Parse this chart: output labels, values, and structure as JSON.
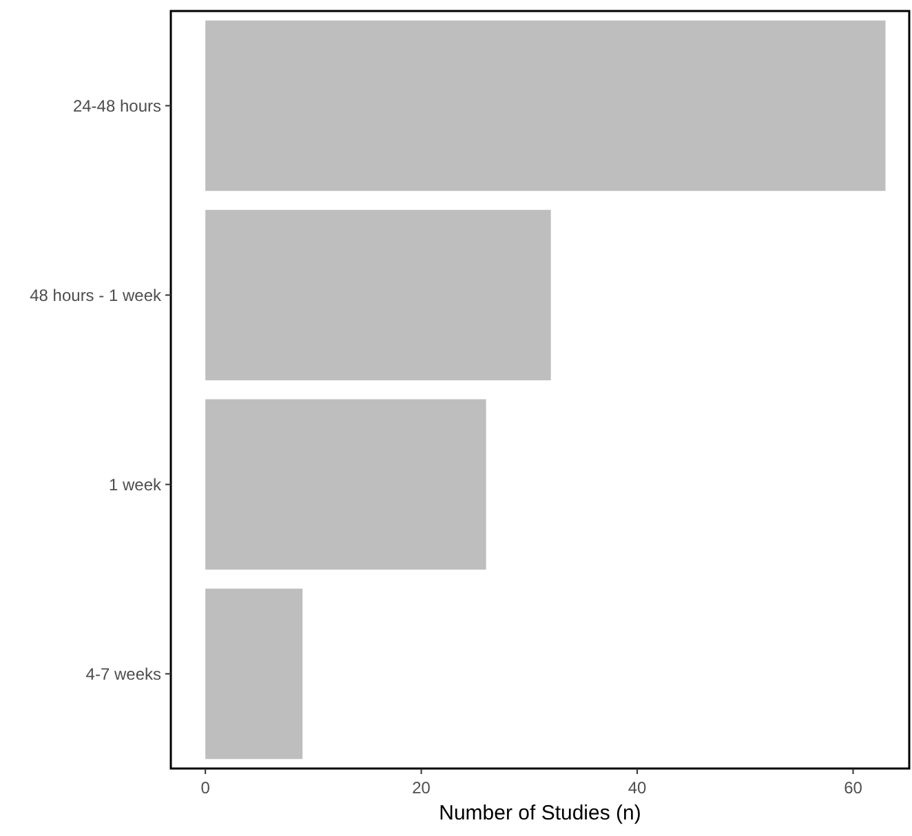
{
  "chart_data": {
    "type": "bar",
    "orientation": "horizontal",
    "categories": [
      "24-48 hours",
      "48 hours - 1 week",
      "1 week",
      "4-7 weeks"
    ],
    "values": [
      63,
      32,
      26,
      9
    ],
    "color": "#bebebe",
    "xlabel": "Number of Studies (n)",
    "xlim": [
      -3.2,
      65.2
    ],
    "xticks": [
      0,
      20,
      40,
      60
    ],
    "grid": false
  }
}
